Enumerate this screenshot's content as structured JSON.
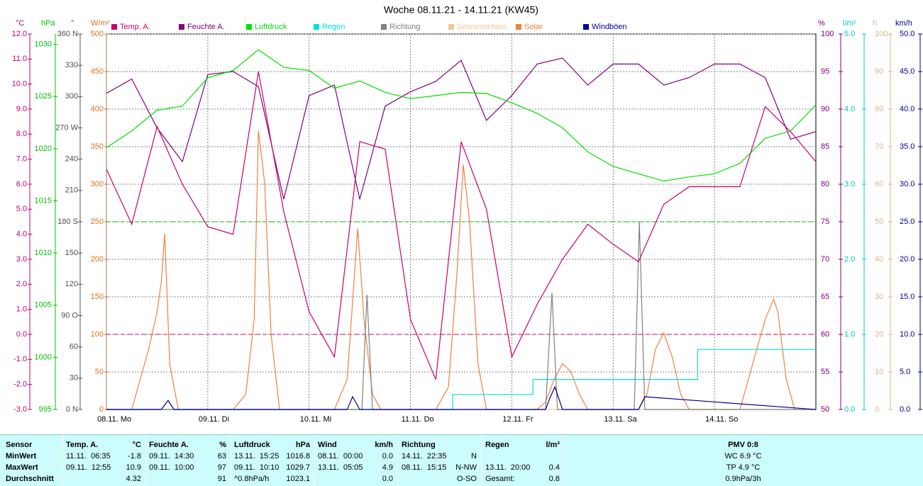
{
  "chart_data": {
    "type": "line",
    "title": "Woche 08.11.21 - 14.11.21 (KW45)",
    "xlim": [
      0,
      168
    ],
    "xticks": [
      {
        "value": 0,
        "label": "08.11. Mo"
      },
      {
        "value": 24,
        "label": "09.11. Di"
      },
      {
        "value": 48,
        "label": "10.11. Mi"
      },
      {
        "value": 72,
        "label": "11.11. Do"
      },
      {
        "value": 96,
        "label": "12.11. Fr"
      },
      {
        "value": 120,
        "label": "13.11. Sa"
      },
      {
        "value": 144,
        "label": "14.11. So"
      }
    ],
    "grid": true,
    "axes": [
      {
        "name": "°C",
        "color": "#c8006e",
        "lim": [
          -3,
          12
        ],
        "ticks": [
          {
            "value": -3,
            "label": "-3.0"
          },
          {
            "value": -2,
            "label": "-2.0"
          },
          {
            "value": -1,
            "label": "-1.0"
          },
          {
            "value": 0,
            "label": "0.0"
          },
          {
            "value": 1,
            "label": "1.0"
          },
          {
            "value": 2,
            "label": "2.0"
          },
          {
            "value": 3,
            "label": "3.0"
          },
          {
            "value": 4,
            "label": "4.0"
          },
          {
            "value": 5,
            "label": "5.0"
          },
          {
            "value": 6,
            "label": "6.0"
          },
          {
            "value": 7,
            "label": "7.0"
          },
          {
            "value": 8,
            "label": "8.0"
          },
          {
            "value": 9,
            "label": "9.0"
          },
          {
            "value": 10,
            "label": "10.0"
          },
          {
            "value": 11,
            "label": "11.0"
          },
          {
            "value": 12,
            "label": "12.0"
          }
        ]
      },
      {
        "name": "hPa",
        "color": "#00c000",
        "lim": [
          995,
          1031
        ],
        "ticks": [
          995,
          1000,
          1005,
          1010,
          1015,
          1020,
          1025,
          1030
        ]
      },
      {
        "name": "°",
        "color": "#505050",
        "lim": [
          0,
          360
        ],
        "ticks": [
          {
            "value": 0,
            "label": "0 N"
          },
          30,
          60,
          {
            "value": 90,
            "label": "90 O"
          },
          120,
          150,
          {
            "value": 180,
            "label": "180 S"
          },
          210,
          240,
          {
            "value": 270,
            "label": "270 W"
          },
          300,
          330,
          {
            "value": 360,
            "label": "360 N"
          }
        ]
      },
      {
        "name": "W/m²",
        "color": "#e07020",
        "lim": [
          0,
          500
        ],
        "grid": true,
        "ticks": [
          0,
          50,
          100,
          150,
          200,
          250,
          300,
          350,
          400,
          450,
          500
        ]
      },
      {
        "name": "%",
        "color": "#800080",
        "lim": [
          50,
          100
        ],
        "ticks": [
          50,
          55,
          60,
          65,
          70,
          75,
          80,
          85,
          90,
          95,
          100
        ]
      },
      {
        "name": "l/m²",
        "color": "#00c8c8",
        "lim": [
          0,
          5
        ],
        "ticks": [
          {
            "value": 0,
            "label": "0.0"
          },
          {
            "value": 1,
            "label": "1.0"
          },
          {
            "value": 2,
            "label": "2.0"
          },
          {
            "value": 3,
            "label": "3.0"
          },
          {
            "value": 4,
            "label": "4.0"
          },
          {
            "value": 5,
            "label": "5.0"
          }
        ]
      },
      {
        "name": "h",
        "color": "#d8b888",
        "lim": [
          0,
          100
        ],
        "ticks": [
          0,
          10,
          20,
          30,
          40,
          50,
          60,
          70,
          80,
          90,
          100
        ]
      },
      {
        "name": "km/h",
        "color": "#000090",
        "lim": [
          0,
          50
        ],
        "ticks": [
          {
            "value": 0,
            "label": "0.0"
          },
          {
            "value": 5,
            "label": "5.0"
          },
          {
            "value": 10,
            "label": "10.0"
          },
          {
            "value": 15,
            "label": "15.0"
          },
          {
            "value": 20,
            "label": "20.0"
          },
          {
            "value": 25,
            "label": "25.0"
          },
          {
            "value": 30,
            "label": "30.0"
          },
          {
            "value": 35,
            "label": "35.0"
          },
          {
            "value": 40,
            "label": "40.0"
          },
          {
            "value": 45,
            "label": "45.0"
          },
          {
            "value": 50,
            "label": "50.0"
          }
        ]
      }
    ],
    "reference_lines": [
      {
        "axis": 0,
        "value": 0,
        "color": "#c8006e"
      },
      {
        "axis": 2,
        "value": 180,
        "color": "#00c000"
      }
    ],
    "series": [
      {
        "name": "Temp. A.",
        "color": "#c8006e",
        "axis": 0,
        "x": [
          0,
          6,
          12,
          18,
          24,
          30,
          36,
          42,
          48,
          54,
          60,
          66,
          72,
          78,
          84,
          90,
          96,
          102,
          108,
          114,
          120,
          126,
          132,
          138,
          144,
          150,
          156,
          162,
          168
        ],
        "values": [
          6.6,
          4.4,
          8.3,
          6.0,
          4.3,
          4.0,
          10.5,
          4.9,
          0.9,
          -0.9,
          7.7,
          7.4,
          0.6,
          -1.8,
          7.7,
          5.0,
          -0.9,
          1.2,
          3.0,
          4.4,
          3.6,
          2.9,
          5.2,
          5.9,
          5.9,
          5.9,
          9.1,
          8.1,
          6.9
        ]
      },
      {
        "name": "Feuchte A.",
        "color": "#800080",
        "axis": 4,
        "x": [
          0,
          6,
          12,
          18,
          24,
          30,
          36,
          42,
          48,
          54,
          60,
          66,
          72,
          78,
          84,
          90,
          96,
          102,
          108,
          114,
          120,
          126,
          132,
          138,
          144,
          150,
          156,
          162,
          168
        ],
        "values": [
          92.1,
          94,
          87.5,
          83,
          94.6,
          95,
          93,
          78,
          91.8,
          93.2,
          78,
          90.4,
          92.3,
          93.7,
          96.5,
          88.5,
          91.8,
          96,
          96.8,
          93.2,
          96,
          96,
          93.2,
          94.2,
          96,
          96,
          94.2,
          86,
          87
        ]
      },
      {
        "name": "Luftdruck",
        "color": "#00e000",
        "axis": 1,
        "x": [
          0,
          6,
          12,
          18,
          24,
          30,
          36,
          42,
          48,
          54,
          60,
          66,
          72,
          78,
          84,
          90,
          96,
          102,
          108,
          114,
          120,
          126,
          132,
          138,
          144,
          150,
          156,
          162,
          168
        ],
        "values": [
          1020.1,
          1021.7,
          1023.7,
          1024.1,
          1026.8,
          1027.5,
          1029.5,
          1027.8,
          1027.5,
          1025.8,
          1026.5,
          1025.4,
          1024.8,
          1025.1,
          1025.4,
          1025.3,
          1024.4,
          1023.4,
          1022.0,
          1019.7,
          1018.3,
          1017.6,
          1016.9,
          1017.3,
          1017.6,
          1018.6,
          1021.0,
          1021.7,
          1024.2
        ]
      },
      {
        "name": "Regen",
        "color": "#00e0e0",
        "axis": 5,
        "x": [
          0,
          82,
          82,
          101,
          101,
          140,
          140,
          168
        ],
        "values": [
          0,
          0,
          0.2,
          0.2,
          0.4,
          0.4,
          0.8,
          0.8
        ]
      },
      {
        "name": "Richtung",
        "color": "#808080",
        "axis": 2,
        "x": [
          0,
          60.5,
          61.7,
          63,
          104,
          105.5,
          106.8,
          125,
          126.2,
          127.5,
          168
        ],
        "values": [
          0,
          0,
          110,
          0,
          0,
          112,
          0,
          0,
          180,
          0,
          0
        ]
      },
      {
        "name": "Sonnenschein",
        "color": "#f0c890",
        "axis": 6,
        "x": [
          0,
          168
        ],
        "values": [
          0,
          0
        ]
      },
      {
        "name": "Solar",
        "color": "#f08040",
        "axis": 3,
        "x": [
          0,
          6,
          10,
          12,
          13,
          13.8,
          15,
          17,
          30,
          33,
          35,
          36,
          37.5,
          39,
          41,
          54,
          57,
          59,
          59.5,
          61,
          63,
          65,
          78,
          81,
          83,
          84.5,
          86,
          88,
          90,
          102,
          104,
          106,
          108,
          110,
          112,
          114,
          126,
          128,
          130,
          132,
          134,
          136,
          138,
          150,
          154,
          156,
          158,
          159,
          161,
          163,
          168
        ],
        "values": [
          0,
          0,
          80,
          130,
          170,
          234,
          60,
          0,
          0,
          20,
          120,
          371,
          300,
          100,
          0,
          0,
          40,
          200,
          241,
          120,
          20,
          0,
          0,
          30,
          180,
          326,
          250,
          60,
          0,
          0,
          10,
          40,
          61,
          50,
          20,
          0,
          0,
          20,
          80,
          102,
          70,
          20,
          0,
          0,
          80,
          120,
          147,
          130,
          40,
          0,
          0
        ]
      },
      {
        "name": "Windböen",
        "color": "#000090",
        "axis": 7,
        "x": [
          0,
          13,
          14.6,
          16,
          56,
          57,
          58.3,
          60,
          104,
          105,
          106.2,
          108,
          125,
          126,
          127.5,
          168
        ],
        "values": [
          0,
          0,
          1.2,
          0,
          0,
          0,
          1.7,
          0,
          0,
          1.5,
          3.0,
          0,
          0,
          0,
          1.7,
          0
        ]
      }
    ]
  },
  "table": {
    "groups": [
      {
        "head": [
          "Sensor"
        ],
        "rows": [
          {
            "t": "MinWert"
          },
          {
            "t": "MaxWert"
          },
          {
            "t": "Durchschnitt"
          }
        ]
      },
      {
        "head": [
          "Temp. A.",
          "°C"
        ],
        "rows": [
          {
            "t": "11.11.  06:35",
            "v": "-1.8"
          },
          {
            "t": "09.11.  12:55",
            "v": "10.9"
          },
          {
            "v": "4.32"
          }
        ]
      },
      {
        "head": [
          "Feuchte A.",
          "%"
        ],
        "rows": [
          {
            "t": "09.11.  14:30",
            "v": "63"
          },
          {
            "t": "09.11.  10:00",
            "v": "97"
          },
          {
            "v": "91"
          }
        ]
      },
      {
        "head": [
          "Luftdruck",
          "hPa"
        ],
        "rows": [
          {
            "t": "13.11.  15:25",
            "v": "1016.8"
          },
          {
            "t": "09.11.  10:10",
            "v": "1029.7"
          },
          {
            "t": "^0.8hPa/h",
            "v": "1023.1"
          }
        ]
      },
      {
        "head": [
          "Wind",
          "km/h"
        ],
        "rows": [
          {
            "t": "08.11.  00:00",
            "v": "0.0"
          },
          {
            "t": "13.11.  05:05",
            "v": "4.9"
          },
          {
            "v": "0.0"
          }
        ]
      },
      {
        "head": [
          "Richtung"
        ],
        "rows": [
          {
            "t": "14.11.  22:35",
            "v": "N"
          },
          {
            "t": "08.11.  15:15",
            "v": "N-NW"
          },
          {
            "v": "O-SO"
          }
        ]
      },
      {
        "head": [
          "Regen",
          "l/m²"
        ],
        "rows": [
          {},
          {
            "t": "13.11.  20:00",
            "v": "0.4"
          },
          {
            "t": "Gesamt:",
            "v": "0.8"
          }
        ]
      },
      {
        "head": [
          "PMV 0:8"
        ],
        "rows": [
          {
            "t": "WC 6.9 °C"
          },
          {
            "t": "TP 4.9 °C"
          },
          {
            "t": "0.9hPa/3h"
          }
        ]
      }
    ]
  }
}
